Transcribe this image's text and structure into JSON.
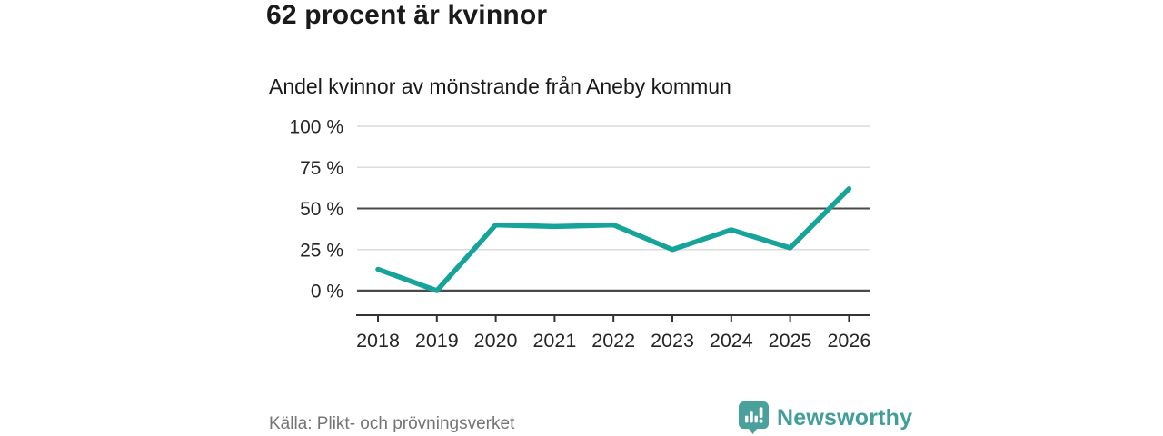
{
  "header": {
    "title": "62 procent är kvinnor",
    "subtitle": "Andel kvinnor av mönstrande från Aneby kommun"
  },
  "chart_data": {
    "type": "line",
    "title": "62 procent är kvinnor",
    "subtitle": "Andel kvinnor av mönstrande från Aneby kommun",
    "x": [
      2018,
      2019,
      2020,
      2021,
      2022,
      2023,
      2024,
      2025,
      2026
    ],
    "series": [
      {
        "name": "Andel kvinnor av mönstrande från Aneby kommun",
        "values": [
          13,
          0,
          40,
          39,
          40,
          25,
          37,
          26,
          62
        ]
      }
    ],
    "xlabel": "",
    "ylabel": "",
    "ylim": [
      0,
      100
    ],
    "yticks": [
      0,
      25,
      50,
      75,
      100
    ],
    "y_tick_labels": [
      "0 %",
      "25 %",
      "50 %",
      "75 %",
      "100 %"
    ],
    "grid": true,
    "emphasized_gridlines": [
      0,
      50
    ],
    "legend": "none",
    "colors": {
      "line": "#16a39a",
      "grid_light": "#dcdcdc",
      "grid_dark": "#4a4a4a",
      "axis": "#333333",
      "tick_label": "#262626"
    }
  },
  "footer": {
    "source": "Källa: Plikt- och prövningsverket",
    "brand": "Newsworthy",
    "brand_color": "#419e9a"
  }
}
